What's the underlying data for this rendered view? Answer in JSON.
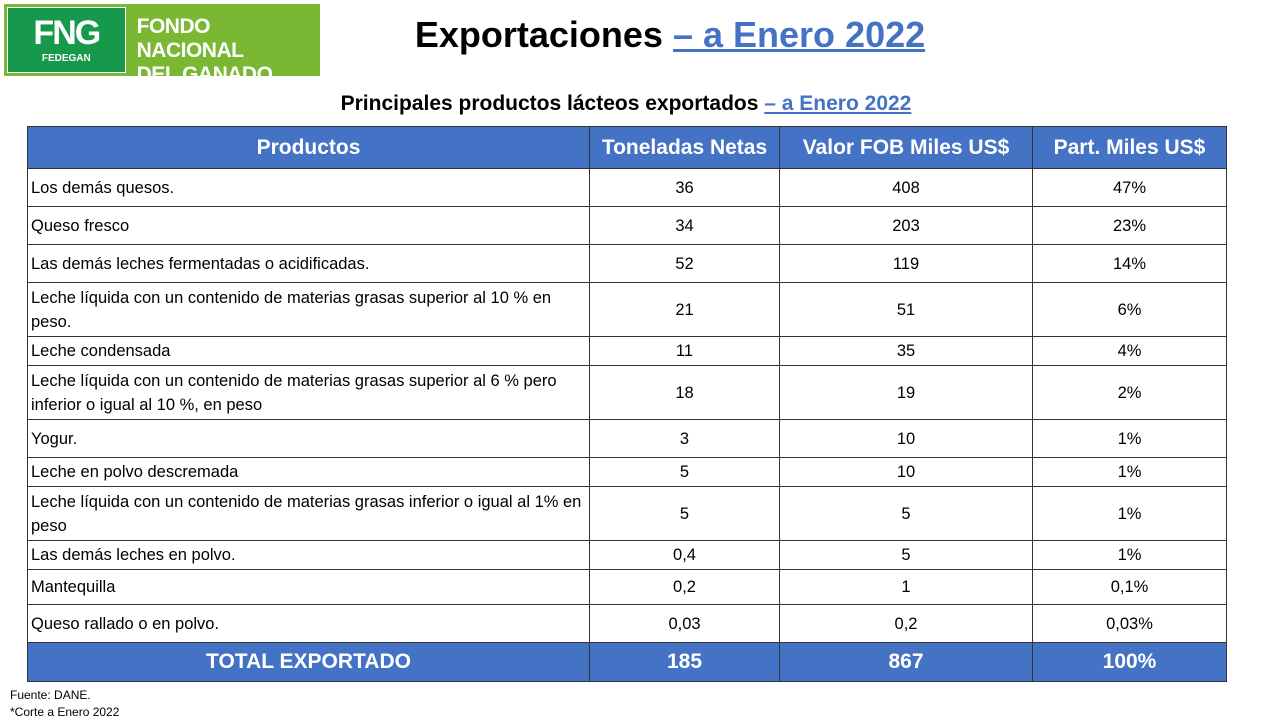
{
  "logo": {
    "mark": "FNG",
    "sub": "FEDEGAN",
    "line1": "FONDO NACIONAL",
    "line2": "DEL GANADO"
  },
  "title": {
    "main": "Exportaciones",
    "date": "– a Enero 2022"
  },
  "subtitle": {
    "main": "Principales productos lácteos exportados",
    "date": "– a Enero 2022"
  },
  "table": {
    "header": [
      "Productos",
      "Toneladas Netas",
      "Valor FOB Miles US$",
      "Part. Miles US$"
    ],
    "rows": [
      [
        "Los demás quesos.",
        "36",
        "408",
        "47%"
      ],
      [
        "Queso fresco",
        "34",
        "203",
        "23%"
      ],
      [
        "Las demás leches fermentadas o acidificadas.",
        "52",
        "119",
        "14%"
      ],
      [
        "Leche líquida con un contenido de materias grasas superior al 10 % en peso.",
        "21",
        "51",
        "6%"
      ],
      [
        "Leche condensada",
        "11",
        "35",
        "4%"
      ],
      [
        "Leche líquida con un contenido de materias grasas superior al 6 % pero inferior o igual al 10 %, en peso",
        "18",
        "19",
        "2%"
      ],
      [
        "Yogur.",
        "3",
        "10",
        "1%"
      ],
      [
        "Leche en polvo descremada",
        "5",
        "10",
        "1%"
      ],
      [
        "Leche líquida con un contenido de materias grasas inferior o igual al 1% en peso",
        "5",
        "5",
        "1%"
      ],
      [
        "Las demás leches en polvo.",
        "0,4",
        "5",
        "1%"
      ],
      [
        "Mantequilla",
        "0,2",
        "1",
        "0,1%"
      ],
      [
        "Queso rallado o en polvo.",
        "0,03",
        "0,2",
        "0,03%"
      ]
    ],
    "total": [
      "TOTAL EXPORTADO",
      "185",
      "867",
      "100%"
    ]
  },
  "notes": [
    "Fuente: DANE.",
    "*Corte a Enero 2022"
  ]
}
